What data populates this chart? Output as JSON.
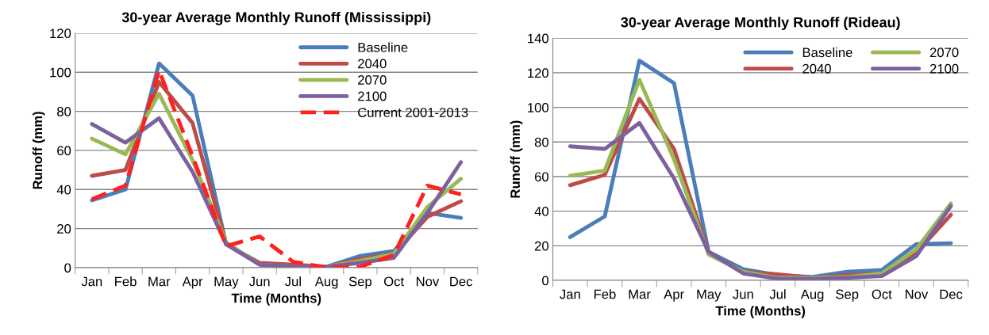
{
  "chart_data": [
    {
      "type": "line",
      "title": "30-year Average Monthly Runoff (Mississippi)",
      "xlabel": "Time (Months)",
      "ylabel": "Runoff (mm)",
      "categories": [
        "Jan",
        "Feb",
        "Mar",
        "Apr",
        "May",
        "Jun",
        "Jul",
        "Aug",
        "Sep",
        "Oct",
        "Nov",
        "Dec"
      ],
      "series": [
        {
          "name": "Baseline",
          "color": "#4a7ebb",
          "values": [
            34.5,
            40,
            104.5,
            88,
            12,
            2,
            1,
            0.5,
            6,
            8.5,
            28,
            25.5
          ]
        },
        {
          "name": "2040",
          "color": "#be4b48",
          "values": [
            47,
            50,
            95,
            74,
            12,
            2.5,
            1.5,
            0.5,
            4.5,
            7,
            26,
            34
          ]
        },
        {
          "name": "2070",
          "color": "#98b954",
          "values": [
            66,
            58,
            89,
            55,
            13,
            1.5,
            0.5,
            0.5,
            3.5,
            7,
            31,
            45.5
          ]
        },
        {
          "name": "2100",
          "color": "#7d60a0",
          "values": [
            73.5,
            64,
            76.5,
            49,
            12,
            1.5,
            0.5,
            0.5,
            2.5,
            5,
            28,
            54
          ]
        },
        {
          "name": "Current 2001-2013",
          "color": "#ff2020",
          "line_style": "dashed",
          "values": [
            35,
            42,
            101,
            57,
            11,
            16,
            3,
            0,
            0.5,
            6.5,
            42,
            37.5
          ]
        }
      ],
      "ylim": [
        0,
        120
      ],
      "yticks": [
        0,
        20,
        40,
        60,
        80,
        100,
        120
      ],
      "grid": "y",
      "legend": "top right",
      "marker": "none",
      "line_style": "solid"
    },
    {
      "type": "line",
      "title": "30-year Average Monthly Runoff (Rideau)",
      "xlabel": "Time (Months)",
      "ylabel": "Runoff (mm)",
      "categories": [
        "Jan",
        "Feb",
        "Mar",
        "Apr",
        "May",
        "Jun",
        "Jul",
        "Aug",
        "Sep",
        "Oct",
        "Nov",
        "Dec"
      ],
      "series": [
        {
          "name": "Baseline",
          "color": "#4a7ebb",
          "values": [
            25,
            37,
            127,
            114,
            16.5,
            6.5,
            3,
            2,
            5,
            6,
            21,
            21.5
          ]
        },
        {
          "name": "2040",
          "color": "#be4b48",
          "values": [
            55,
            61,
            105,
            76,
            16,
            5,
            3.5,
            1.5,
            3,
            4,
            16,
            38
          ]
        },
        {
          "name": "2070",
          "color": "#98b954",
          "values": [
            60.5,
            63.5,
            116,
            70,
            15,
            5,
            1.5,
            1.5,
            2,
            4,
            18,
            44.5
          ]
        },
        {
          "name": "2100",
          "color": "#7d60a0",
          "values": [
            77.5,
            76,
            91,
            59,
            16.5,
            4,
            1,
            1,
            1.5,
            2.5,
            14,
            43
          ]
        }
      ],
      "ylim": [
        0,
        140
      ],
      "yticks": [
        0,
        20,
        40,
        60,
        80,
        100,
        120,
        140
      ],
      "grid": "y",
      "legend": "top right",
      "marker": "none",
      "line_style": "solid"
    }
  ]
}
